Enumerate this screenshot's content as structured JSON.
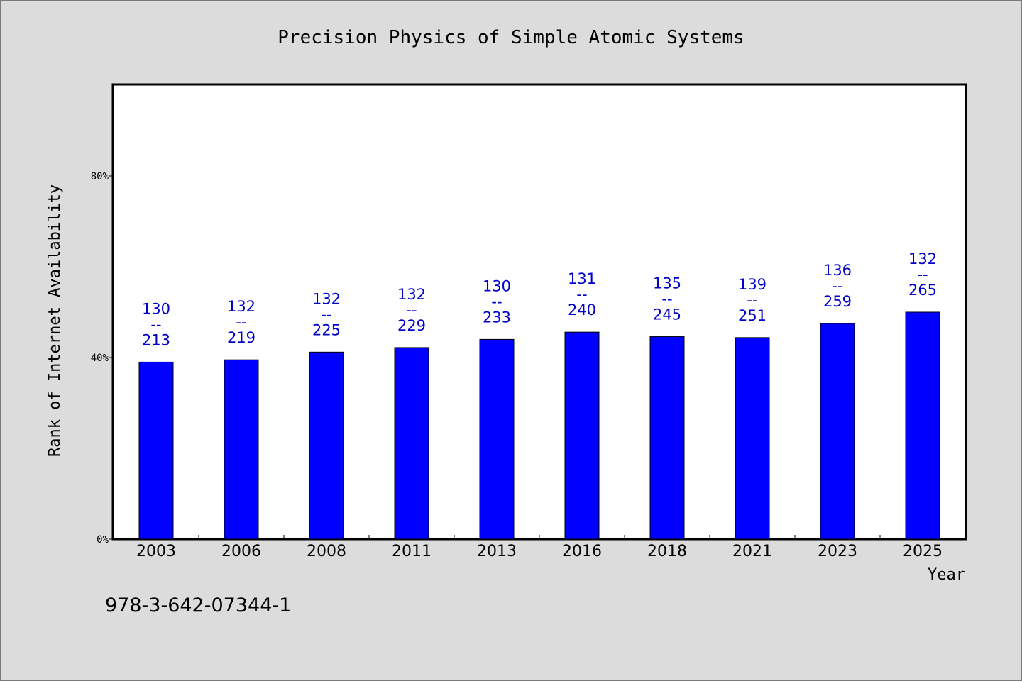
{
  "chart_data": {
    "type": "bar",
    "title": "Precision Physics of Simple Atomic Systems",
    "xlabel": "Year",
    "ylabel": "Rank of Internet Availability",
    "categories": [
      "2003",
      "2006",
      "2008",
      "2011",
      "2013",
      "2016",
      "2018",
      "2021",
      "2023",
      "2025"
    ],
    "values": [
      0.39,
      0.395,
      0.412,
      0.422,
      0.44,
      0.456,
      0.446,
      0.444,
      0.475,
      0.5
    ],
    "bar_labels": [
      [
        "130",
        "--",
        "213"
      ],
      [
        "132",
        "--",
        "219"
      ],
      [
        "132",
        "--",
        "225"
      ],
      [
        "132",
        "--",
        "229"
      ],
      [
        "130",
        "--",
        "233"
      ],
      [
        "131",
        "--",
        "240"
      ],
      [
        "135",
        "--",
        "245"
      ],
      [
        "139",
        "--",
        "251"
      ],
      [
        "136",
        "--",
        "259"
      ],
      [
        "132",
        "--",
        "265"
      ]
    ],
    "ylim": [
      0,
      1.0
    ],
    "y_ticks": [
      0,
      0.4,
      0.8
    ],
    "y_tick_labels": [
      "0%",
      "40%",
      "80%"
    ],
    "grid": false,
    "bar_color": "#0000ff",
    "label_color": "#0000cc"
  },
  "footer": {
    "isbn": "978-3-642-07344-1"
  }
}
